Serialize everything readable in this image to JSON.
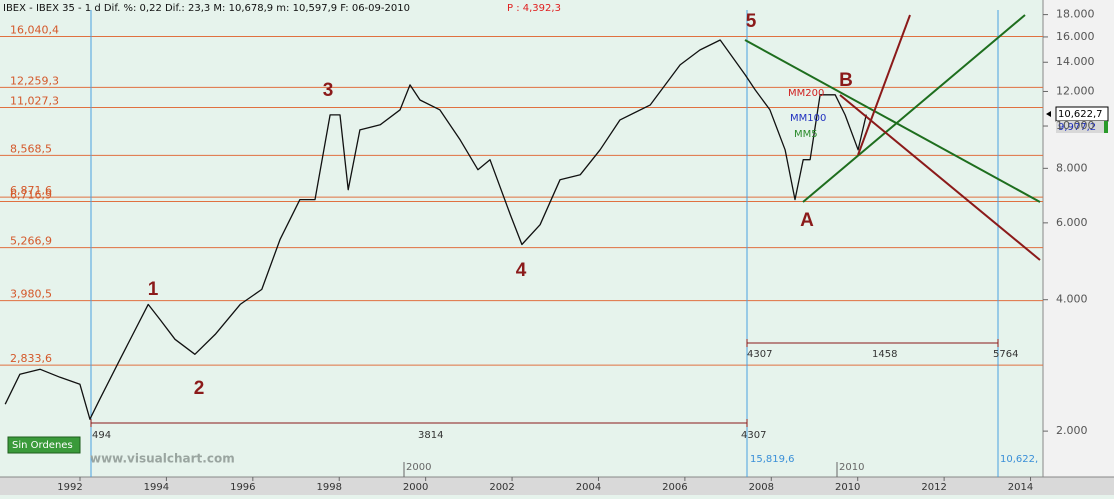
{
  "chart_data": {
    "type": "line",
    "title": "IBEX - IBEX 35 -  1 d Dif. %: 0,22 Dif.: 23,3 M: 10,678,9 m: 10,597,9 F: 06-09-2010",
    "price_label": "P : 4,392,3",
    "x": [
      1990.5,
      1990.84,
      1991.31,
      1991.77,
      1992.23,
      1992.46,
      1992.69,
      1993.16,
      1993.81,
      1994.08,
      1994.43,
      1994.89,
      1995.36,
      1995.94,
      1996.44,
      1996.86,
      1997.32,
      1997.67,
      1998.02,
      1998.25,
      1998.44,
      1998.71,
      1999.18,
      1999.64,
      1999.87,
      2000.1,
      2000.56,
      2001.03,
      2001.44,
      2001.72,
      2002.19,
      2002.46,
      2002.88,
      2003.34,
      2003.81,
      2004.27,
      2004.73,
      2005.43,
      2006.12,
      2006.58,
      2007.05,
      2007.63,
      2007.86,
      2008.2,
      2008.55,
      2008.78,
      2008.97,
      2009.13,
      2009.36,
      2009.71,
      2009.94,
      2010.24,
      2010.43
    ],
    "values": [
      2305,
      2700,
      2771,
      2657,
      2561,
      2130,
      2367,
      2922,
      3903,
      3606,
      3246,
      3000,
      3332,
      3903,
      4223,
      5494,
      6782,
      6782,
      10603,
      10603,
      7148,
      9800,
      10067,
      10895,
      12420,
      11474,
      10895,
      9300,
      7942,
      8374,
      6266,
      5353,
      5943,
      7532,
      7736,
      8822,
      10331,
      11182,
      13803,
      14934,
      15743,
      13092,
      12100,
      10895,
      8822,
      6782,
      8374,
      8374,
      11789,
      11789,
      10603,
      8822,
      10622
    ],
    "color": "#111111",
    "xlim": [
      1990.38,
      2014.52
    ],
    "xticks": [
      1992,
      1994,
      1996,
      1998,
      2000,
      2002,
      2004,
      2006,
      2008,
      2010,
      2012,
      2014
    ],
    "ylim": [
      1570,
      18443
    ],
    "log_scale": true,
    "yticks": [
      {
        "value": 2000,
        "label": "2.000"
      },
      {
        "value": 4000,
        "label": "4.000"
      },
      {
        "value": 6000,
        "label": "6.000"
      },
      {
        "value": 8000,
        "label": "8.000"
      },
      {
        "value": 10000,
        "label": "10.000"
      },
      {
        "value": 12000,
        "label": "12.000"
      },
      {
        "value": 14000,
        "label": "14.000"
      },
      {
        "value": 16000,
        "label": "16.000"
      },
      {
        "value": 18000,
        "label": "18.000"
      }
    ],
    "levels": [
      {
        "value": 16040.4,
        "label": "16,040,4"
      },
      {
        "value": 12259.3,
        "label": "12,259,3"
      },
      {
        "value": 11027.3,
        "label": "11,027,3"
      },
      {
        "value": 8568.5,
        "label": "8,568,5"
      },
      {
        "value": 6871.6,
        "label": "6,871,6"
      },
      {
        "value": 6716.9,
        "label": "6,716,9"
      },
      {
        "value": 5266.9,
        "label": "5,266,9"
      },
      {
        "value": 3980.5,
        "label": "3,980,5"
      },
      {
        "value": 2833.6,
        "label": "2,833,6"
      }
    ],
    "level_color": "#e07040",
    "annotations": {
      "wave_1": "1",
      "wave_2": "2",
      "wave_3": "3",
      "wave_4": "4",
      "wave_5": "5",
      "wave_A": "A",
      "wave_B": "B",
      "ma200": "MM200",
      "ma100": "MM100",
      "ma5": "MM5",
      "measure_1": "494",
      "measure_2": "3814",
      "measure_3": "4307",
      "measure_4": "4307",
      "measure_5": "1458",
      "measure_6": "5764",
      "line_value_1": "15,819,6",
      "line_value_2": "10,622,",
      "period_1": "2000",
      "period_2": "2010"
    }
  },
  "ui": {
    "button": "Sin Ordenes",
    "watermark": "www.visualchart.com",
    "last_price": "10,622,7",
    "ma_price": "9,977,2"
  }
}
